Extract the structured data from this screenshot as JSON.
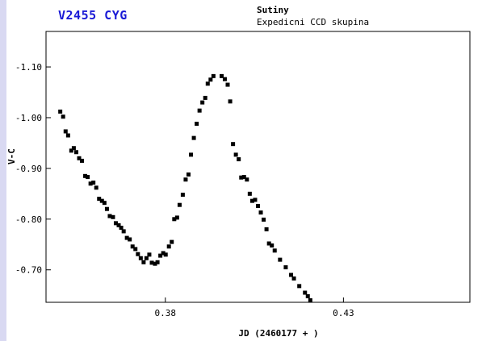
{
  "header": {
    "star_name": "V2455 CYG",
    "observer": "Sutiny",
    "team": "Expedicni CCD skupina"
  },
  "colors": {
    "title": "#1a1ad6",
    "points": "#000000",
    "sidebar": "#d9d9f2"
  },
  "chart_data": {
    "type": "scatter",
    "title": "V2455 CYG",
    "xlabel": "JD (2460177 + )",
    "ylabel": "V-C",
    "xlim": [
      0.3465,
      0.4655
    ],
    "ylim": [
      -0.636,
      -1.17
    ],
    "y_inverted": true,
    "xticks": [
      0.38,
      0.43
    ],
    "xtick_labels": [
      "0.38",
      "0.43"
    ],
    "yticks": [
      -1.1,
      -1.0,
      -0.9,
      -0.8,
      -0.7
    ],
    "ytick_labels": [
      "-1.10",
      "-1.00",
      "-0.90",
      "-0.80",
      "-0.70"
    ],
    "grid": false,
    "legend": "none",
    "series": [
      {
        "x": [
          0.3505,
          0.3513,
          0.352,
          0.3527,
          0.3536,
          0.3543,
          0.355,
          0.3558,
          0.3566,
          0.3575,
          0.3582,
          0.359,
          0.3598,
          0.3606,
          0.3614,
          0.3622,
          0.3629,
          0.3636,
          0.3644,
          0.3653,
          0.3661,
          0.3669,
          0.3676,
          0.3683,
          0.3692,
          0.37,
          0.3708,
          0.3716,
          0.3723,
          0.3731,
          0.3739,
          0.3747,
          0.3755,
          0.3762,
          0.3771,
          0.3778,
          0.3786,
          0.3794,
          0.3801,
          0.381,
          0.3818,
          0.3825,
          0.3833,
          0.384,
          0.3849,
          0.3857,
          0.3865,
          0.3872,
          0.388,
          0.3888,
          0.3896,
          0.3904,
          0.3912,
          0.3919,
          0.3927,
          0.3935,
          0.3958,
          0.3967,
          0.3975,
          0.3982,
          0.399,
          0.3998,
          0.4006,
          0.4013,
          0.4021,
          0.4029,
          0.4037,
          0.4044,
          0.4052,
          0.406,
          0.4068,
          0.4076,
          0.4084,
          0.4091,
          0.4099,
          0.4107,
          0.4122,
          0.4138,
          0.4153,
          0.4161,
          0.4176,
          0.4192,
          0.42,
          0.4207,
          0.4215,
          0.423,
          0.4238,
          0.4246,
          0.4254,
          0.4261,
          0.4269,
          0.4285,
          0.43,
          0.4316,
          0.4331,
          0.4347
        ],
        "y": [
          -1.012,
          -1.002,
          -0.973,
          -0.965,
          -0.935,
          -0.94,
          -0.932,
          -0.92,
          -0.915,
          -0.885,
          -0.883,
          -0.87,
          -0.872,
          -0.862,
          -0.84,
          -0.836,
          -0.832,
          -0.82,
          -0.806,
          -0.804,
          -0.792,
          -0.788,
          -0.783,
          -0.776,
          -0.763,
          -0.76,
          -0.746,
          -0.741,
          -0.731,
          -0.723,
          -0.715,
          -0.723,
          -0.73,
          -0.714,
          -0.712,
          -0.715,
          -0.728,
          -0.733,
          -0.73,
          -0.746,
          -0.755,
          -0.8,
          -0.803,
          -0.828,
          -0.848,
          -0.878,
          -0.888,
          -0.927,
          -0.96,
          -0.988,
          -1.014,
          -1.03,
          -1.039,
          -1.067,
          -1.075,
          -1.082,
          -1.082,
          -1.076,
          -1.065,
          -1.032,
          -0.948,
          -0.927,
          -0.918,
          -0.882,
          -0.883,
          -0.878,
          -0.85,
          -0.836,
          -0.838,
          -0.826,
          -0.813,
          -0.799,
          -0.78,
          -0.752,
          -0.748,
          -0.738,
          -0.72,
          -0.705,
          -0.69,
          -0.683,
          -0.668,
          -0.655,
          -0.648,
          -0.64,
          -0.638,
          -0.637,
          -0.637,
          -0.637,
          -0.637,
          -0.637,
          -0.637,
          -0.637,
          -0.637,
          -0.637,
          -0.637,
          -0.637
        ]
      }
    ]
  }
}
